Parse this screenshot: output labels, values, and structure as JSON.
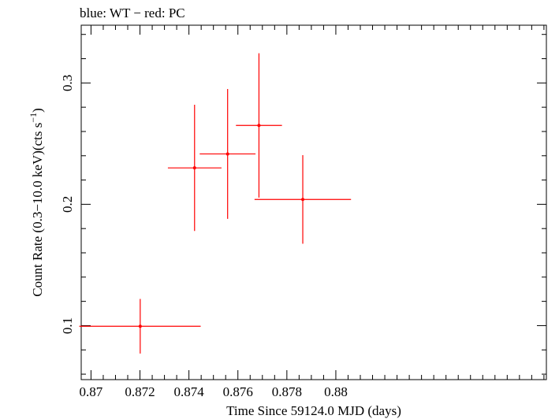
{
  "chart_data": {
    "type": "scatter",
    "title": "blue: WT − red: PC",
    "xlabel": "Time Since 59124.0 MJD (days)",
    "ylabel_main": "Count Rate (0.3−10.0 keV)(cts s",
    "ylabel_sup": "−1",
    "ylabel_end": ")",
    "xlim": [
      0.8696,
      0.8886
    ],
    "ylim": [
      0.0555,
      0.3476
    ],
    "x_ticks": [
      0.87,
      0.872,
      0.874,
      0.876,
      0.878,
      0.88
    ],
    "x_tick_labels": [
      "0.87",
      "0.872",
      "0.874",
      "0.876",
      "0.878",
      "0.88"
    ],
    "x_minor_step": 0.0005,
    "y_ticks": [
      0.1,
      0.2,
      0.3
    ],
    "y_tick_labels": [
      "0.1",
      "0.2",
      "0.3"
    ],
    "y_minor_step": 0.02,
    "series": [
      {
        "name": "PC",
        "color": "#ff0000",
        "points": [
          {
            "x": 0.87201,
            "y": 0.0995,
            "xerr_lo": 0.00249,
            "xerr_hi": 0.00247,
            "yerr_lo": 0.0225,
            "yerr_hi": 0.0225
          },
          {
            "x": 0.87423,
            "y": 0.23,
            "xerr_lo": 0.00109,
            "xerr_hi": 0.0011,
            "yerr_lo": 0.052,
            "yerr_hi": 0.052
          },
          {
            "x": 0.87558,
            "y": 0.2415,
            "xerr_lo": 0.00114,
            "xerr_hi": 0.00114,
            "yerr_lo": 0.0535,
            "yerr_hi": 0.0535
          },
          {
            "x": 0.87686,
            "y": 0.265,
            "xerr_lo": 0.00094,
            "xerr_hi": 0.00094,
            "yerr_lo": 0.0595,
            "yerr_hi": 0.0595
          },
          {
            "x": 0.87865,
            "y": 0.204,
            "xerr_lo": 0.00197,
            "xerr_hi": 0.00197,
            "yerr_lo": 0.0365,
            "yerr_hi": 0.0365
          }
        ]
      }
    ]
  }
}
